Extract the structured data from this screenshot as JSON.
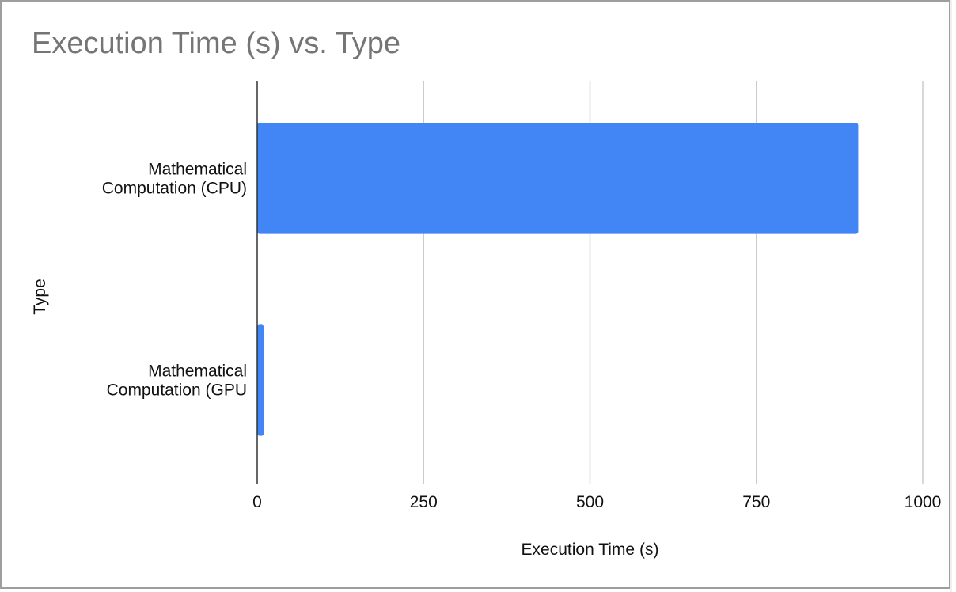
{
  "chart_data": {
    "type": "bar",
    "orientation": "horizontal",
    "title": "Execution Time (s) vs. Type",
    "xlabel": "Execution Time (s)",
    "ylabel": "Type",
    "categories": [
      [
        "Mathematical",
        "Computation (CPU)"
      ],
      [
        "Mathematical",
        "Computation (GPU"
      ]
    ],
    "series": [
      {
        "values": [
          903,
          10
        ]
      }
    ],
    "xlim": [
      0,
      1000
    ],
    "xticks": [
      "0",
      "250",
      "500",
      "750",
      "1000"
    ],
    "grid": true,
    "legend": "none",
    "colors": {
      "bar": "#4285f4",
      "grid": "#cccccc",
      "axis": "#333333",
      "title": "#757575"
    }
  }
}
